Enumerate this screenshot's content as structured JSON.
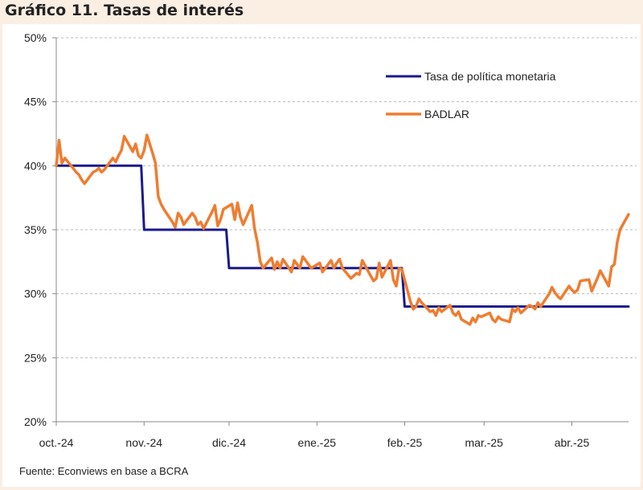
{
  "chart_data": {
    "type": "line",
    "title": "Gráfico 11. Tasas de interés",
    "source": "Fuente: Econviews en base a BCRA",
    "xlabel": "",
    "ylabel": "",
    "x_tick_labels": [
      "oct.-24",
      "nov.-24",
      "dic.-24",
      "ene.-25",
      "feb.-25",
      "mar.-25",
      "abr.-25"
    ],
    "x_tick_dates": [
      "2024-10-01",
      "2024-11-01",
      "2024-12-01",
      "2025-01-01",
      "2025-02-01",
      "2025-03-01",
      "2025-04-01"
    ],
    "y_tick_labels": [
      "20%",
      "25%",
      "30%",
      "35%",
      "40%",
      "45%",
      "50%"
    ],
    "ylim": [
      20,
      50
    ],
    "xlim": [
      "2024-10-01",
      "2025-04-21"
    ],
    "grid": "horizontal dashed",
    "legend_position": "top-right",
    "series": [
      {
        "name": "Tasa de política monetaria",
        "color": "#1a1a8c",
        "points": [
          [
            "2024-10-01",
            40
          ],
          [
            "2024-10-31",
            40
          ],
          [
            "2024-11-01",
            35
          ],
          [
            "2024-11-30",
            35
          ],
          [
            "2024-12-01",
            32
          ],
          [
            "2025-01-31",
            32
          ],
          [
            "2025-02-01",
            29
          ],
          [
            "2025-04-21",
            29
          ]
        ]
      },
      {
        "name": "BADLAR",
        "color": "#ee7d31",
        "points": [
          [
            "2024-10-01",
            40.0
          ],
          [
            "2024-10-02",
            42.0
          ],
          [
            "2024-10-03",
            40.2
          ],
          [
            "2024-10-04",
            40.6
          ],
          [
            "2024-10-07",
            39.8
          ],
          [
            "2024-10-08",
            39.5
          ],
          [
            "2024-10-09",
            39.3
          ],
          [
            "2024-10-10",
            38.9
          ],
          [
            "2024-10-11",
            38.6
          ],
          [
            "2024-10-14",
            39.5
          ],
          [
            "2024-10-15",
            39.6
          ],
          [
            "2024-10-16",
            39.8
          ],
          [
            "2024-10-17",
            39.5
          ],
          [
            "2024-10-18",
            39.7
          ],
          [
            "2024-10-21",
            40.6
          ],
          [
            "2024-10-22",
            40.3
          ],
          [
            "2024-10-23",
            40.8
          ],
          [
            "2024-10-24",
            41.2
          ],
          [
            "2024-10-25",
            42.3
          ],
          [
            "2024-10-28",
            41.1
          ],
          [
            "2024-10-29",
            41.7
          ],
          [
            "2024-10-30",
            40.8
          ],
          [
            "2024-10-31",
            40.6
          ],
          [
            "2024-11-01",
            41.2
          ],
          [
            "2024-11-02",
            42.4
          ],
          [
            "2024-11-04",
            41.0
          ],
          [
            "2024-11-05",
            40.2
          ],
          [
            "2024-11-06",
            37.6
          ],
          [
            "2024-11-07",
            37.0
          ],
          [
            "2024-11-08",
            36.6
          ],
          [
            "2024-11-11",
            35.6
          ],
          [
            "2024-11-12",
            35.2
          ],
          [
            "2024-11-13",
            36.3
          ],
          [
            "2024-11-14",
            36.0
          ],
          [
            "2024-11-15",
            35.4
          ],
          [
            "2024-11-18",
            36.3
          ],
          [
            "2024-11-19",
            36.0
          ],
          [
            "2024-11-20",
            35.4
          ],
          [
            "2024-11-21",
            35.6
          ],
          [
            "2024-11-22",
            35.1
          ],
          [
            "2024-11-25",
            36.4
          ],
          [
            "2024-11-26",
            36.9
          ],
          [
            "2024-11-27",
            35.3
          ],
          [
            "2024-11-28",
            35.8
          ],
          [
            "2024-11-29",
            36.6
          ],
          [
            "2024-12-02",
            37.0
          ],
          [
            "2024-12-03",
            35.8
          ],
          [
            "2024-12-04",
            37.1
          ],
          [
            "2024-12-05",
            36.0
          ],
          [
            "2024-12-06",
            35.4
          ],
          [
            "2024-12-09",
            36.9
          ],
          [
            "2024-12-10",
            35.1
          ],
          [
            "2024-12-11",
            34.0
          ],
          [
            "2024-12-12",
            32.5
          ],
          [
            "2024-12-13",
            32.0
          ],
          [
            "2024-12-16",
            32.8
          ],
          [
            "2024-12-17",
            31.9
          ],
          [
            "2024-12-18",
            32.5
          ],
          [
            "2024-12-19",
            32.0
          ],
          [
            "2024-12-20",
            32.7
          ],
          [
            "2024-12-23",
            31.7
          ],
          [
            "2024-12-24",
            32.6
          ],
          [
            "2024-12-26",
            32.0
          ],
          [
            "2024-12-27",
            32.9
          ],
          [
            "2024-12-30",
            32.0
          ],
          [
            "2025-01-02",
            32.4
          ],
          [
            "2025-01-03",
            31.7
          ],
          [
            "2025-01-06",
            32.6
          ],
          [
            "2025-01-07",
            32.0
          ],
          [
            "2025-01-08",
            32.4
          ],
          [
            "2025-01-09",
            32.7
          ],
          [
            "2025-01-10",
            32.0
          ],
          [
            "2025-01-13",
            31.2
          ],
          [
            "2025-01-14",
            31.4
          ],
          [
            "2025-01-15",
            31.6
          ],
          [
            "2025-01-16",
            31.5
          ],
          [
            "2025-01-17",
            32.6
          ],
          [
            "2025-01-20",
            31.4
          ],
          [
            "2025-01-21",
            31.0
          ],
          [
            "2025-01-22",
            31.2
          ],
          [
            "2025-01-23",
            32.4
          ],
          [
            "2025-01-24",
            31.3
          ],
          [
            "2025-01-27",
            32.6
          ],
          [
            "2025-01-28",
            31.1
          ],
          [
            "2025-01-29",
            30.6
          ],
          [
            "2025-01-30",
            32.0
          ],
          [
            "2025-01-31",
            31.9
          ],
          [
            "2025-02-03",
            29.4
          ],
          [
            "2025-02-04",
            28.8
          ],
          [
            "2025-02-05",
            29.0
          ],
          [
            "2025-02-06",
            29.6
          ],
          [
            "2025-02-07",
            29.3
          ],
          [
            "2025-02-10",
            28.6
          ],
          [
            "2025-02-11",
            28.7
          ],
          [
            "2025-02-12",
            28.3
          ],
          [
            "2025-02-13",
            28.9
          ],
          [
            "2025-02-14",
            28.6
          ],
          [
            "2025-02-17",
            29.1
          ],
          [
            "2025-02-18",
            28.5
          ],
          [
            "2025-02-19",
            28.3
          ],
          [
            "2025-02-20",
            28.6
          ],
          [
            "2025-02-21",
            28.0
          ],
          [
            "2025-02-24",
            27.6
          ],
          [
            "2025-02-25",
            28.1
          ],
          [
            "2025-02-26",
            27.8
          ],
          [
            "2025-02-27",
            28.3
          ],
          [
            "2025-02-28",
            28.2
          ],
          [
            "2025-03-03",
            28.5
          ],
          [
            "2025-03-04",
            28.0
          ],
          [
            "2025-03-05",
            27.8
          ],
          [
            "2025-03-06",
            28.2
          ],
          [
            "2025-03-07",
            28.0
          ],
          [
            "2025-03-10",
            27.8
          ],
          [
            "2025-03-11",
            28.8
          ],
          [
            "2025-03-12",
            28.6
          ],
          [
            "2025-03-13",
            28.9
          ],
          [
            "2025-03-14",
            28.5
          ],
          [
            "2025-03-17",
            29.1
          ],
          [
            "2025-03-18",
            29.0
          ],
          [
            "2025-03-19",
            28.8
          ],
          [
            "2025-03-20",
            29.3
          ],
          [
            "2025-03-21",
            29.0
          ],
          [
            "2025-03-24",
            30.0
          ],
          [
            "2025-03-25",
            30.5
          ],
          [
            "2025-03-26",
            30.1
          ],
          [
            "2025-03-27",
            29.8
          ],
          [
            "2025-03-28",
            29.6
          ],
          [
            "2025-03-31",
            30.6
          ],
          [
            "2025-04-01",
            30.3
          ],
          [
            "2025-04-02",
            30.1
          ],
          [
            "2025-04-03",
            30.3
          ],
          [
            "2025-04-04",
            31.0
          ],
          [
            "2025-04-07",
            31.1
          ],
          [
            "2025-04-08",
            30.2
          ],
          [
            "2025-04-09",
            30.7
          ],
          [
            "2025-04-10",
            31.2
          ],
          [
            "2025-04-11",
            31.8
          ],
          [
            "2025-04-14",
            30.6
          ],
          [
            "2025-04-15",
            32.1
          ],
          [
            "2025-04-16",
            32.3
          ],
          [
            "2025-04-17",
            34.0
          ],
          [
            "2025-04-18",
            35.0
          ],
          [
            "2025-04-21",
            36.2
          ]
        ]
      }
    ]
  }
}
